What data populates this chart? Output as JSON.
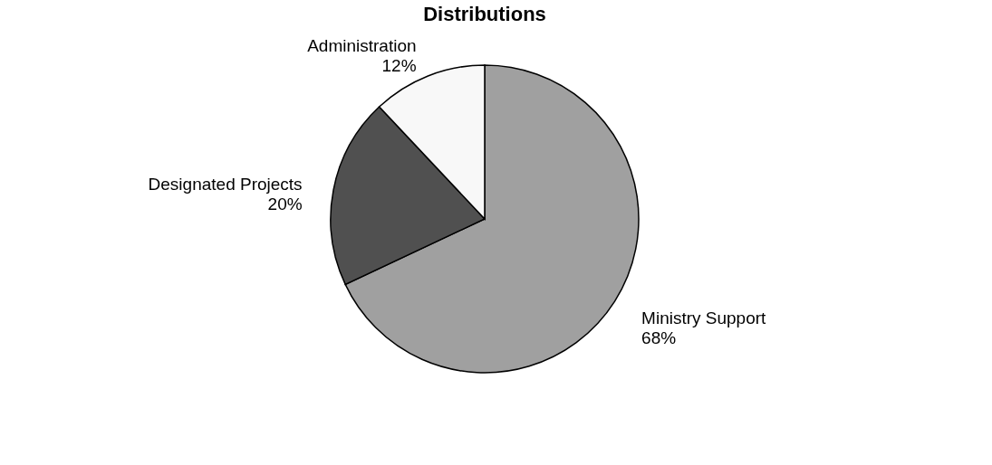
{
  "chart_data": {
    "type": "pie",
    "title": "Distributions",
    "categories": [
      "Ministry Support",
      "Designated Projects",
      "Administration"
    ],
    "values": [
      68,
      20,
      12
    ],
    "colors": [
      "#a0a0a0",
      "#505050",
      "#f8f8f8"
    ],
    "value_labels": [
      "68%",
      "20%",
      "12%"
    ],
    "legend": false
  }
}
